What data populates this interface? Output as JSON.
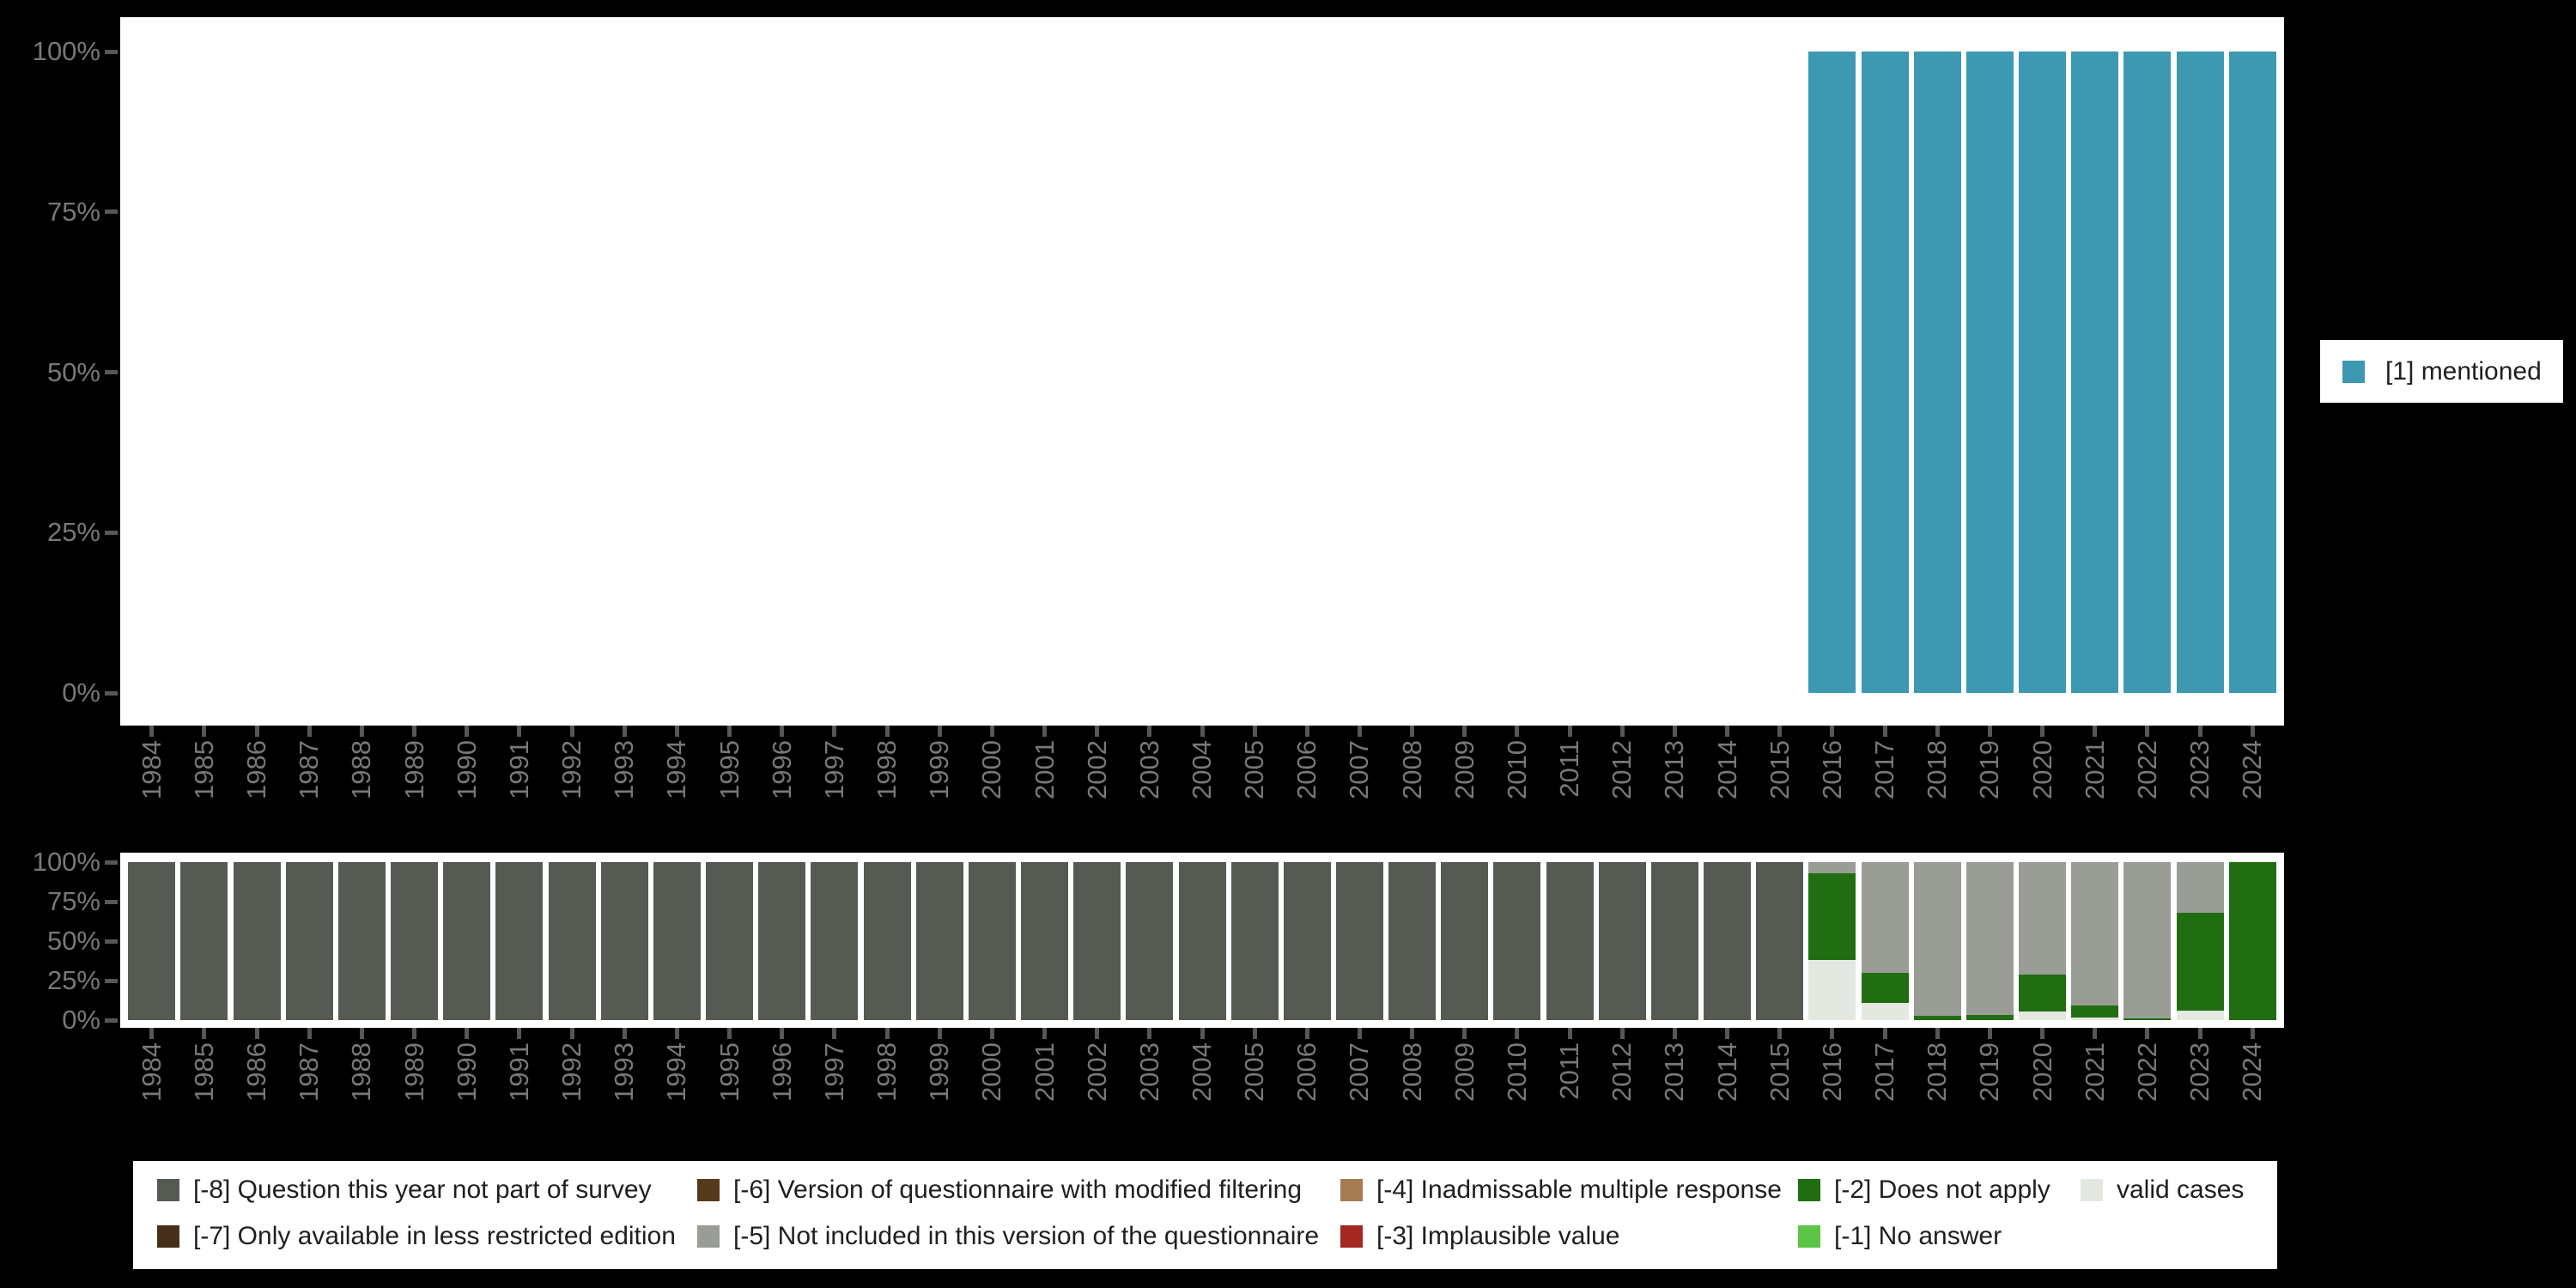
{
  "colors": {
    "mentioned": "#3C99B1",
    "na8": "#555B52",
    "na7": "#47301B",
    "na6": "#57391B",
    "na5": "#999D96",
    "na4": "#A57C52",
    "na3": "#A42722",
    "na2": "#216E12",
    "na1": "#5CC546",
    "valid": "#E3E8E1",
    "background": "#000000",
    "plot_background": "#FFFFFF",
    "axis_text": "#787878",
    "legend_text": "#1F1F1F"
  },
  "chart_data": [
    {
      "id": "main",
      "type": "bar",
      "stacked": true,
      "grid": false,
      "legend_position": "right",
      "ylim": [
        0,
        100
      ],
      "y_tick_labels": [
        "100%",
        "75%",
        "50%",
        "25%",
        "0%"
      ],
      "categories": [
        1984,
        1985,
        1986,
        1987,
        1988,
        1989,
        1990,
        1991,
        1992,
        1993,
        1994,
        1995,
        1996,
        1997,
        1998,
        1999,
        2000,
        2001,
        2002,
        2003,
        2004,
        2005,
        2006,
        2007,
        2008,
        2009,
        2010,
        2011,
        2012,
        2013,
        2014,
        2015,
        2016,
        2017,
        2018,
        2019,
        2020,
        2021,
        2022,
        2023,
        2024
      ],
      "series": [
        {
          "name": "[1] mentioned",
          "color_key": "mentioned",
          "values": [
            null,
            null,
            null,
            null,
            null,
            null,
            null,
            null,
            null,
            null,
            null,
            null,
            null,
            null,
            null,
            null,
            null,
            null,
            null,
            null,
            null,
            null,
            null,
            null,
            null,
            null,
            null,
            null,
            null,
            null,
            null,
            null,
            100,
            100,
            100,
            100,
            100,
            100,
            100,
            100,
            100
          ]
        }
      ]
    },
    {
      "id": "missing",
      "type": "bar",
      "stacked": true,
      "grid": false,
      "ylim": [
        0,
        100
      ],
      "y_tick_labels": [
        "100%",
        "75%",
        "50%",
        "25%",
        "0%"
      ],
      "categories": [
        1984,
        1985,
        1986,
        1987,
        1988,
        1989,
        1990,
        1991,
        1992,
        1993,
        1994,
        1995,
        1996,
        1997,
        1998,
        1999,
        2000,
        2001,
        2002,
        2003,
        2004,
        2005,
        2006,
        2007,
        2008,
        2009,
        2010,
        2011,
        2012,
        2013,
        2014,
        2015,
        2016,
        2017,
        2018,
        2019,
        2020,
        2021,
        2022,
        2023,
        2024
      ],
      "series": [
        {
          "name": "[-8] Question this year not part of survey",
          "color_key": "na8",
          "values": [
            100,
            100,
            100,
            100,
            100,
            100,
            100,
            100,
            100,
            100,
            100,
            100,
            100,
            100,
            100,
            100,
            100,
            100,
            100,
            100,
            100,
            100,
            100,
            100,
            100,
            100,
            100,
            100,
            100,
            100,
            100,
            100,
            0,
            0,
            0,
            0,
            0,
            0,
            0,
            0,
            0
          ]
        },
        {
          "name": "[-5] Not included in this version of the questionnaire",
          "color_key": "na5",
          "values": [
            0,
            0,
            0,
            0,
            0,
            0,
            0,
            0,
            0,
            0,
            0,
            0,
            0,
            0,
            0,
            0,
            0,
            0,
            0,
            0,
            0,
            0,
            0,
            0,
            0,
            0,
            0,
            0,
            0,
            0,
            0,
            0,
            7,
            70,
            97.5,
            96.5,
            71,
            90.5,
            99,
            32,
            0
          ]
        },
        {
          "name": "[-2] Does not apply",
          "color_key": "na2",
          "values": [
            0,
            0,
            0,
            0,
            0,
            0,
            0,
            0,
            0,
            0,
            0,
            0,
            0,
            0,
            0,
            0,
            0,
            0,
            0,
            0,
            0,
            0,
            0,
            0,
            0,
            0,
            0,
            0,
            0,
            0,
            0,
            0,
            55,
            19,
            2.5,
            3.5,
            23.5,
            8,
            1,
            62,
            100
          ]
        },
        {
          "name": "valid cases",
          "color_key": "valid",
          "values": [
            0,
            0,
            0,
            0,
            0,
            0,
            0,
            0,
            0,
            0,
            0,
            0,
            0,
            0,
            0,
            0,
            0,
            0,
            0,
            0,
            0,
            0,
            0,
            0,
            0,
            0,
            0,
            0,
            0,
            0,
            0,
            0,
            38,
            11,
            0,
            0,
            5.5,
            1.5,
            0,
            6,
            0
          ]
        }
      ]
    }
  ],
  "legends": {
    "right": {
      "items": [
        {
          "label": "[1] mentioned",
          "color_key": "mentioned"
        }
      ]
    },
    "bottom": {
      "items": [
        {
          "label": "[-8] Question this year not part of survey",
          "color_key": "na8"
        },
        {
          "label": "[-6] Version of questionnaire with modified filtering",
          "color_key": "na6"
        },
        {
          "label": "[-4] Inadmissable multiple response",
          "color_key": "na4"
        },
        {
          "label": "[-2] Does not apply",
          "color_key": "na2"
        },
        {
          "label": "valid cases",
          "color_key": "valid"
        },
        {
          "label": "[-7] Only available in less restricted edition",
          "color_key": "na7"
        },
        {
          "label": "[-5] Not included in this version of the questionnaire",
          "color_key": "na5"
        },
        {
          "label": "[-3] Implausible value",
          "color_key": "na3"
        },
        {
          "label": "[-1] No answer",
          "color_key": "na1"
        }
      ]
    }
  }
}
